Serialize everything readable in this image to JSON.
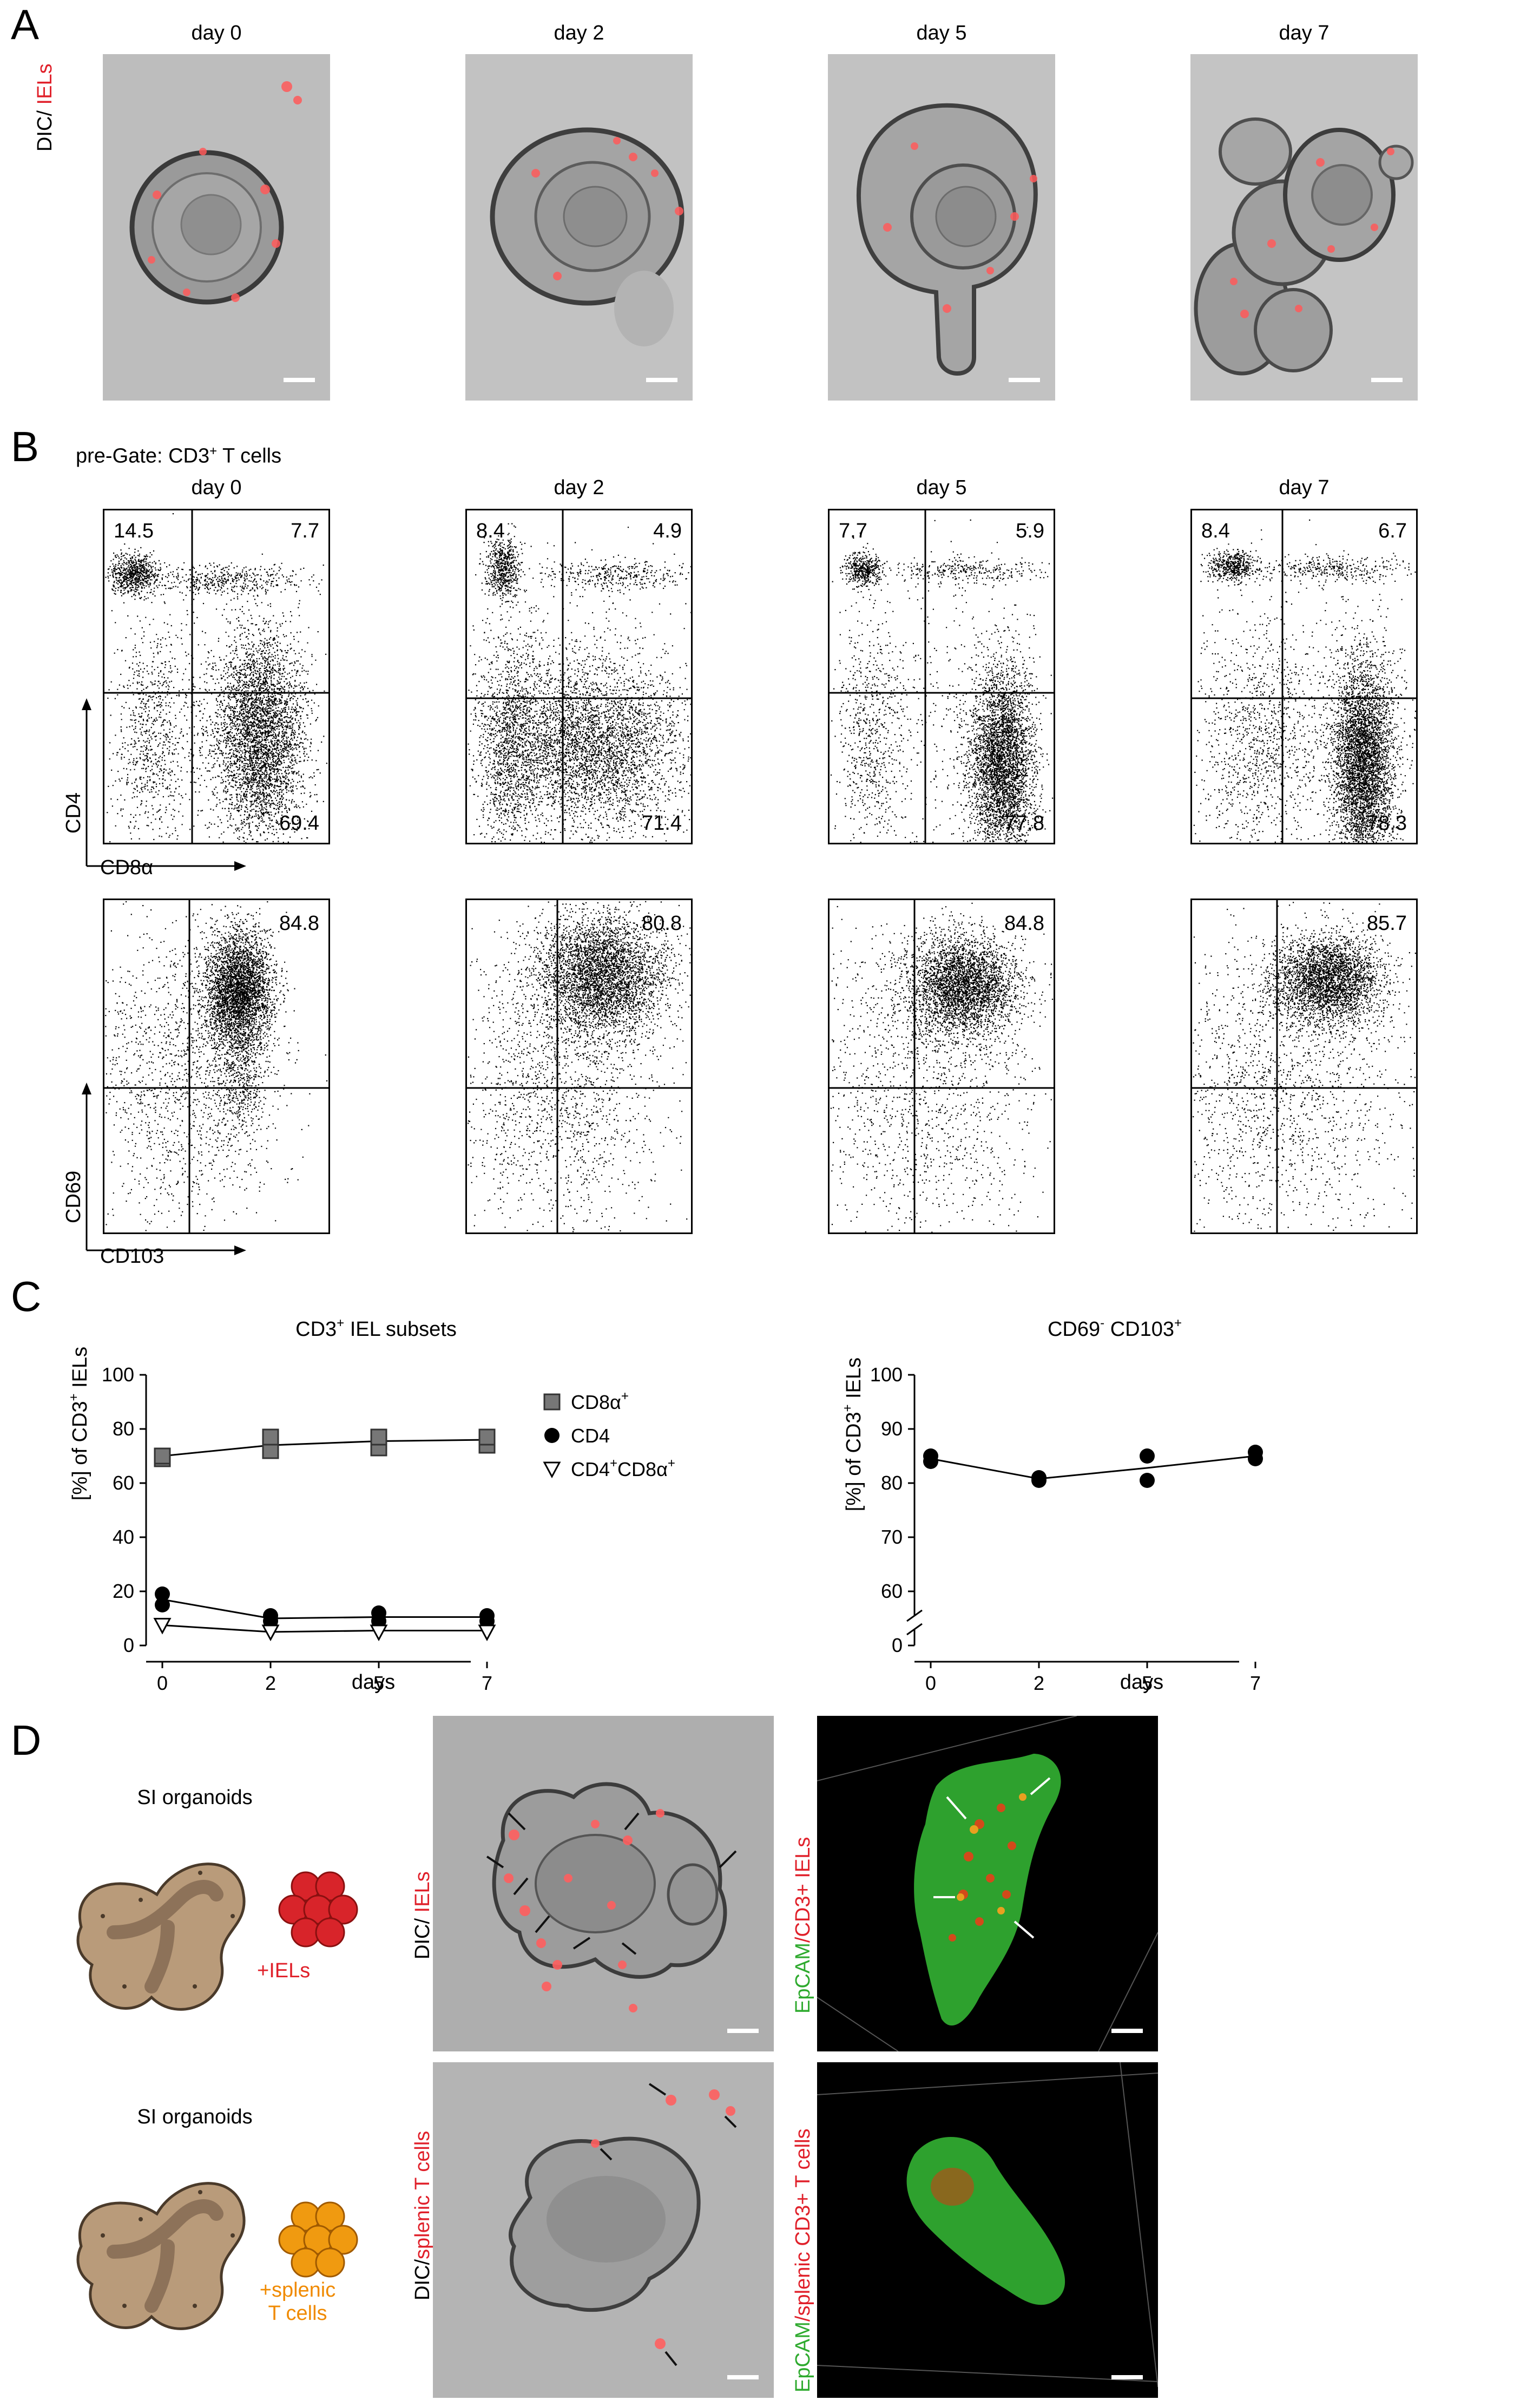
{
  "panels": {
    "A": "A",
    "B": "B",
    "C": "C",
    "D": "D"
  },
  "panel_a": {
    "y_label_prefix": "DIC/ ",
    "y_label_colored": "IELs",
    "days": [
      "day 0",
      "day 2",
      "day 5",
      "day 7"
    ]
  },
  "panel_b": {
    "pregate": "pre-Gate: CD3",
    "pregate_sup": "+",
    "pregate_suffix": " T cells",
    "days": [
      "day 0",
      "day 2",
      "day 5",
      "day 7"
    ],
    "row1_y": "CD4",
    "row1_x": "CD8α",
    "row2_y": "CD69",
    "row2_x": "CD103",
    "cd4_cd8": [
      {
        "ul": "14.5",
        "ur": "7.7",
        "lr": "69.4"
      },
      {
        "ul": "8.4",
        "ur": "4.9",
        "lr": "71.4"
      },
      {
        "ul": "7.7",
        "ur": "5.9",
        "lr": "77.8"
      },
      {
        "ul": "8.4",
        "ur": "6.7",
        "lr": "78.3"
      }
    ],
    "cd69_cd103": [
      "84.8",
      "80.8",
      "84.8",
      "85.7"
    ]
  },
  "panel_d": {
    "organoid1": "SI organoids",
    "organoid1_add": "+IELs",
    "organoid2": "SI organoids",
    "organoid2_add_line1": "+splenic",
    "organoid2_add_line2": "T cells",
    "dic1_prefix": "DIC/ ",
    "dic1_colored": "IELs",
    "dic2_prefix": "DIC/",
    "dic2_colored": "splenic  T cells",
    "conf1_green": "EpCAM",
    "conf1_red": "/CD3+ IELs",
    "conf2_green": "EpCAM",
    "conf2_red": "/splenic CD3+ T cells"
  },
  "colors": {
    "iel_red": "#e0202a",
    "splenic_orange": "#f08a00",
    "epcam_green": "#2eaa2e"
  },
  "chart_data": [
    {
      "type": "scatter",
      "title": "CD3+ IEL subsets",
      "title_parts": {
        "a": "CD3",
        "sup": "+",
        "b": " IEL subsets"
      },
      "xlabel": "days",
      "ylabel_parts": {
        "a": "[%] of CD3",
        "sup": "+",
        "b": "  IELs"
      },
      "categories": [
        "0",
        "2",
        "5",
        "7"
      ],
      "ylim": [
        0,
        100
      ],
      "yticks": [
        0,
        20,
        40,
        60,
        80,
        100
      ],
      "series": [
        {
          "name": "CD8α",
          "name_sup": "+",
          "marker": "square",
          "points": [
            [
              0,
              69
            ],
            [
              0,
              70
            ],
            [
              2,
              72
            ],
            [
              2,
              77
            ],
            [
              5,
              73
            ],
            [
              5,
              77
            ],
            [
              7,
              74
            ],
            [
              7,
              77
            ]
          ],
          "line": [
            70,
            74,
            75.5,
            76
          ]
        },
        {
          "name": "CD4",
          "name_sup": "",
          "marker": "circle",
          "points": [
            [
              0,
              15
            ],
            [
              0,
              19
            ],
            [
              2,
              9
            ],
            [
              2,
              11
            ],
            [
              5,
              9
            ],
            [
              5,
              12
            ],
            [
              7,
              9
            ],
            [
              7,
              11
            ]
          ],
          "line": [
            17,
            10,
            10.5,
            10.5
          ]
        },
        {
          "name": "CD4",
          "name_sup": "+",
          "name2": "CD8α",
          "name2_sup": "+",
          "marker": "triangle",
          "points": [
            [
              0,
              7.5
            ],
            [
              2,
              5
            ],
            [
              5,
              5
            ],
            [
              7,
              5
            ]
          ],
          "line": [
            7.5,
            5,
            5.5,
            5.5
          ]
        }
      ],
      "legend": "right"
    },
    {
      "type": "scatter",
      "title_parts": {
        "a": "CD69",
        "sup": "-",
        "b": " CD103",
        "sup2": "+"
      },
      "xlabel": "days",
      "ylabel_parts": {
        "a": "[%] of CD3",
        "sup": "+",
        "b": " IELs"
      },
      "categories": [
        "0",
        "2",
        "5",
        "7"
      ],
      "ylim": [
        60,
        100
      ],
      "yticks": [
        0,
        60,
        70,
        80,
        90,
        100
      ],
      "axis_break": true,
      "series": [
        {
          "marker": "circle",
          "points": [
            [
              0,
              84
            ],
            [
              0,
              85
            ],
            [
              2,
              80.5
            ],
            [
              2,
              81
            ],
            [
              5,
              80.5
            ],
            [
              5,
              85
            ],
            [
              7,
              84.5
            ],
            [
              7,
              85.7
            ]
          ],
          "line": [
            84.5,
            80.8,
            82.8,
            85
          ]
        }
      ]
    }
  ]
}
